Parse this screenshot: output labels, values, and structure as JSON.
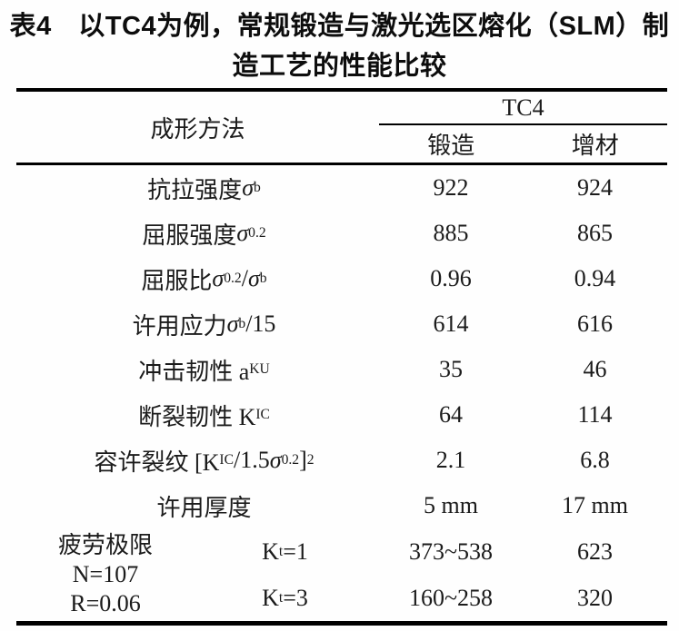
{
  "title": {
    "line1": "表4　以TC4为例，常规锻造与激光选区熔化（SLM）制",
    "line2": "造工艺的性能比较"
  },
  "table": {
    "header": {
      "method": "成形方法",
      "group": "TC4",
      "col1": "锻造",
      "col2": "增材"
    },
    "rows": [
      {
        "label": [
          {
            "t": "t",
            "v": "抗拉强度 "
          },
          {
            "t": "i",
            "v": "σ"
          },
          {
            "t": "sub",
            "v": "b"
          }
        ],
        "forging": "922",
        "additive": "924"
      },
      {
        "label": [
          {
            "t": "t",
            "v": "屈服强度 "
          },
          {
            "t": "i",
            "v": "σ"
          },
          {
            "t": "sub",
            "v": "0.2"
          }
        ],
        "forging": "885",
        "additive": "865"
      },
      {
        "label": [
          {
            "t": "t",
            "v": "屈服比 "
          },
          {
            "t": "i",
            "v": "σ"
          },
          {
            "t": "sub",
            "v": "0.2"
          },
          {
            "t": "t",
            "v": "/"
          },
          {
            "t": "i",
            "v": "σ"
          },
          {
            "t": "sub",
            "v": "b"
          }
        ],
        "forging": "0.96",
        "additive": "0.94"
      },
      {
        "label": [
          {
            "t": "t",
            "v": "许用应力 "
          },
          {
            "t": "i",
            "v": "σ"
          },
          {
            "t": "sub",
            "v": "b"
          },
          {
            "t": "t",
            "v": "/15"
          }
        ],
        "forging": "614",
        "additive": "616"
      },
      {
        "label": [
          {
            "t": "t",
            "v": "冲击韧性  a"
          },
          {
            "t": "sub",
            "v": "KU"
          }
        ],
        "forging": "35",
        "additive": "46"
      },
      {
        "label": [
          {
            "t": "t",
            "v": "断裂韧性  K"
          },
          {
            "t": "sub",
            "v": "IC"
          }
        ],
        "forging": "64",
        "additive": "114"
      },
      {
        "label": [
          {
            "t": "t",
            "v": "容许裂纹  [K"
          },
          {
            "t": "sub",
            "v": "IC"
          },
          {
            "t": "t",
            "v": "/1.5"
          },
          {
            "t": "i",
            "v": "σ"
          },
          {
            "t": "sub",
            "v": "0.2"
          },
          {
            "t": "t",
            "v": "]"
          },
          {
            "t": "sup",
            "v": "2"
          }
        ],
        "forging": "2.1",
        "additive": "6.8"
      },
      {
        "label": [
          {
            "t": "t",
            "v": "许用厚度"
          }
        ],
        "forging": "5 mm",
        "additive": "17 mm"
      }
    ],
    "fatigue": {
      "side": [
        "疲劳极限",
        "N=107",
        "R=0.06"
      ],
      "rows": [
        {
          "label": [
            {
              "t": "t",
              "v": "K"
            },
            {
              "t": "sub",
              "v": "t"
            },
            {
              "t": "t",
              "v": "=1"
            }
          ],
          "forging": "373~538",
          "additive": "623"
        },
        {
          "label": [
            {
              "t": "t",
              "v": "K"
            },
            {
              "t": "sub",
              "v": "t"
            },
            {
              "t": "t",
              "v": "=3"
            }
          ],
          "forging": "160~258",
          "additive": "320"
        }
      ]
    }
  },
  "colors": {
    "text": "#1b1b1b",
    "rule": "#000000",
    "background": "#fefefe"
  }
}
